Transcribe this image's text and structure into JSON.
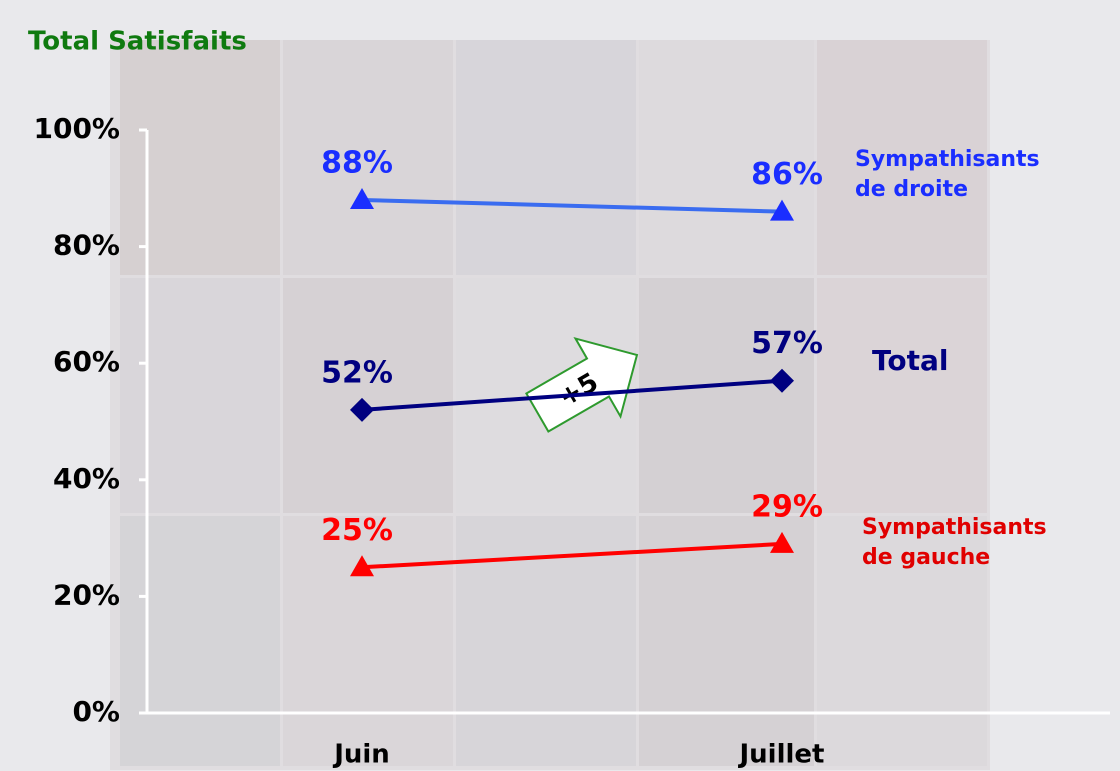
{
  "chart_data": {
    "type": "line",
    "title": "Total Satisfaits",
    "categories": [
      "Juin",
      "Juillet"
    ],
    "series": [
      {
        "name": "Sympathisants de droite",
        "color": "#1a2eff",
        "line_color": "#3a6cf0",
        "marker": "triangle",
        "values": [
          88,
          86
        ],
        "value_labels": [
          "88%",
          "86%"
        ]
      },
      {
        "name": "Total",
        "color": "#000080",
        "line_color": "#000080",
        "marker": "diamond",
        "values": [
          52,
          57
        ],
        "value_labels": [
          "52%",
          "57%"
        ]
      },
      {
        "name": "Sympathisants de gauche",
        "color": "#ff0000",
        "line_color": "#ff0000",
        "marker": "triangle",
        "values": [
          25,
          29
        ],
        "value_labels": [
          "25%",
          "29%"
        ]
      }
    ],
    "annotation": "+5",
    "ylim": [
      0,
      100
    ],
    "yticks": [
      {
        "value": 0,
        "label": "0%"
      },
      {
        "value": 20,
        "label": "20%"
      },
      {
        "value": 40,
        "label": "40%"
      },
      {
        "value": 60,
        "label": "60%"
      },
      {
        "value": 80,
        "label": "80%"
      },
      {
        "value": 100,
        "label": "100%"
      }
    ]
  }
}
